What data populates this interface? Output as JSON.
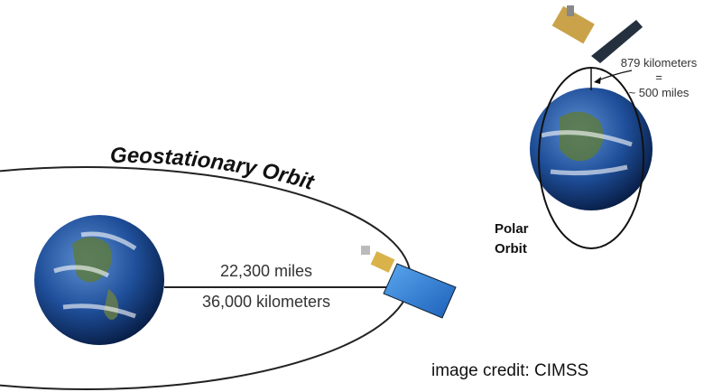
{
  "geostationary": {
    "title": "Geostationary Orbit",
    "distance_miles": "22,300 miles",
    "distance_km": "36,000 kilometers"
  },
  "polar": {
    "title_line1": "Polar",
    "title_line2": "Orbit",
    "altitude_km": "879 kilometers",
    "equals": "=",
    "altitude_miles": "~ 500 miles"
  },
  "credit": "image credit: CIMSS"
}
